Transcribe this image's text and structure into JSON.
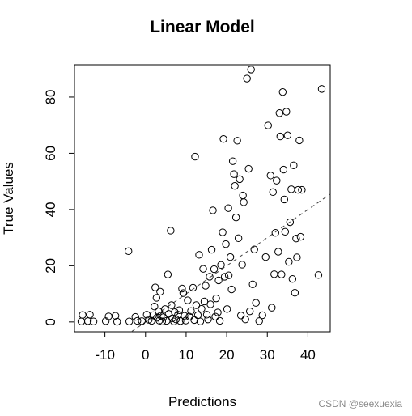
{
  "chart_data": {
    "type": "scatter",
    "title": "Linear Model",
    "xlabel": "Predictions",
    "ylabel": "True Values",
    "xlim": [
      -17.5,
      45.5
    ],
    "ylim": [
      -3.5,
      91.5
    ],
    "x_ticks": [
      -10,
      0,
      10,
      20,
      30,
      40
    ],
    "x_tick_labels": [
      "-10",
      "0",
      "10",
      "20",
      "30",
      "40"
    ],
    "y_ticks": [
      0,
      20,
      40,
      60,
      80
    ],
    "y_tick_labels": [
      "0",
      "20",
      "40",
      "60",
      "80"
    ],
    "grid": false,
    "reference_line": {
      "style": "dashed",
      "slope": 1,
      "intercept": 0
    },
    "points": [
      [
        -15.5,
        2.5
      ],
      [
        -15.8,
        0.2
      ],
      [
        -14.2,
        0.3
      ],
      [
        -13.7,
        2.6
      ],
      [
        -12.8,
        0.2
      ],
      [
        -9.8,
        0.3
      ],
      [
        -9.1,
        2.0
      ],
      [
        -7.4,
        2.2
      ],
      [
        -7.0,
        0.1
      ],
      [
        -4.2,
        25.2
      ],
      [
        -4.0,
        0.2
      ],
      [
        -2.5,
        1.8
      ],
      [
        -2.0,
        0.4
      ],
      [
        -0.9,
        0.3
      ],
      [
        0.3,
        2.6
      ],
      [
        0.8,
        0.8
      ],
      [
        1.5,
        0.4
      ],
      [
        1.9,
        2.4
      ],
      [
        2.2,
        5.5
      ],
      [
        2.4,
        12.3
      ],
      [
        2.7,
        8.6
      ],
      [
        2.8,
        1.5
      ],
      [
        3.2,
        3.8
      ],
      [
        3.4,
        0.5
      ],
      [
        3.6,
        10.8
      ],
      [
        3.8,
        2.2
      ],
      [
        4.1,
        0.2
      ],
      [
        4.4,
        1.7
      ],
      [
        4.8,
        4.6
      ],
      [
        5.2,
        0.4
      ],
      [
        5.5,
        16.9
      ],
      [
        5.7,
        2.9
      ],
      [
        6.2,
        32.5
      ],
      [
        6.4,
        6.0
      ],
      [
        6.6,
        1.3
      ],
      [
        7.0,
        0.2
      ],
      [
        7.2,
        3.5
      ],
      [
        7.5,
        0.9
      ],
      [
        8.0,
        2.6
      ],
      [
        8.3,
        4.2
      ],
      [
        8.6,
        0.3
      ],
      [
        9.0,
        11.9
      ],
      [
        9.3,
        10.3
      ],
      [
        9.6,
        2.2
      ],
      [
        9.9,
        0.5
      ],
      [
        10.4,
        7.7
      ],
      [
        10.8,
        1.9
      ],
      [
        11.2,
        3.9
      ],
      [
        11.7,
        12.2
      ],
      [
        12.0,
        0.7
      ],
      [
        12.2,
        58.8
      ],
      [
        12.5,
        6.0
      ],
      [
        12.9,
        2.4
      ],
      [
        13.2,
        23.9
      ],
      [
        13.5,
        0.2
      ],
      [
        13.8,
        4.7
      ],
      [
        14.2,
        18.9
      ],
      [
        14.5,
        7.3
      ],
      [
        14.8,
        12.9
      ],
      [
        15.1,
        2.6
      ],
      [
        15.4,
        0.9
      ],
      [
        15.8,
        16.1
      ],
      [
        16.0,
        6.3
      ],
      [
        16.3,
        25.7
      ],
      [
        16.6,
        39.7
      ],
      [
        16.9,
        18.8
      ],
      [
        17.2,
        1.9
      ],
      [
        17.4,
        8.4
      ],
      [
        17.8,
        3.4
      ],
      [
        18.0,
        14.8
      ],
      [
        18.3,
        0.4
      ],
      [
        18.6,
        20.3
      ],
      [
        19.0,
        31.9
      ],
      [
        19.2,
        65.1
      ],
      [
        19.5,
        16.1
      ],
      [
        19.8,
        27.7
      ],
      [
        20.1,
        4.6
      ],
      [
        20.4,
        40.5
      ],
      [
        20.5,
        16.6
      ],
      [
        20.9,
        23.1
      ],
      [
        21.2,
        11.6
      ],
      [
        21.5,
        57.2
      ],
      [
        21.8,
        52.6
      ],
      [
        22.0,
        48.4
      ],
      [
        22.3,
        37.2
      ],
      [
        22.6,
        64.5
      ],
      [
        22.9,
        29.8
      ],
      [
        23.2,
        50.8
      ],
      [
        23.5,
        2.3
      ],
      [
        23.8,
        20.4
      ],
      [
        24.0,
        45.0
      ],
      [
        24.2,
        42.6
      ],
      [
        24.6,
        0.9
      ],
      [
        25.0,
        86.6
      ],
      [
        25.4,
        54.5
      ],
      [
        25.7,
        3.8
      ],
      [
        26.0,
        89.8
      ],
      [
        26.4,
        13.4
      ],
      [
        26.8,
        25.8
      ],
      [
        27.2,
        6.8
      ],
      [
        28.0,
        0.3
      ],
      [
        28.8,
        2.4
      ],
      [
        29.6,
        23.1
      ],
      [
        30.2,
        69.9
      ],
      [
        30.8,
        52.1
      ],
      [
        31.1,
        5.1
      ],
      [
        31.4,
        46.2
      ],
      [
        31.7,
        17.0
      ],
      [
        32.0,
        31.7
      ],
      [
        32.3,
        50.3
      ],
      [
        32.7,
        25.0
      ],
      [
        33.0,
        74.3
      ],
      [
        33.2,
        66.0
      ],
      [
        33.5,
        16.9
      ],
      [
        33.8,
        81.8
      ],
      [
        34.0,
        54.2
      ],
      [
        34.2,
        43.6
      ],
      [
        34.4,
        32.1
      ],
      [
        34.7,
        74.8
      ],
      [
        35.0,
        66.4
      ],
      [
        35.3,
        21.4
      ],
      [
        35.6,
        35.5
      ],
      [
        35.9,
        47.2
      ],
      [
        36.2,
        15.3
      ],
      [
        36.5,
        55.7
      ],
      [
        36.8,
        10.4
      ],
      [
        37.1,
        29.7
      ],
      [
        37.3,
        23.0
      ],
      [
        37.6,
        47.0
      ],
      [
        37.9,
        64.6
      ],
      [
        38.2,
        30.3
      ],
      [
        38.5,
        47.0
      ],
      [
        42.6,
        16.7
      ],
      [
        43.4,
        82.9
      ]
    ]
  },
  "watermark": "CSDN @seexuexia"
}
